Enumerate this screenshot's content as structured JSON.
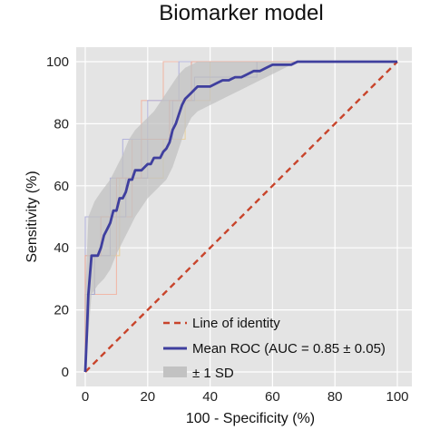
{
  "chart_data": {
    "type": "line",
    "title": "Biomarker model",
    "xlabel": "100 - Specificity (%)",
    "ylabel": "Sensitivity (%)",
    "xlim": [
      0,
      100
    ],
    "ylim": [
      0,
      100
    ],
    "xticks": [
      0,
      20,
      40,
      60,
      80,
      100
    ],
    "yticks": [
      0,
      20,
      40,
      60,
      80,
      100
    ],
    "grid": true,
    "legend_position": "bottom-right",
    "colors": {
      "background": "#e4e4e4",
      "grid": "#ffffff",
      "identity": "#c8442b",
      "mean_roc": "#3f3f9e",
      "sd_band": "#c2c2c2",
      "fold_curves": [
        "#f0b8a8",
        "#b4b4dc",
        "#e6d0a0",
        "#a8a8d0",
        "#e8a898"
      ]
    },
    "series": [
      {
        "name": "Line of identity",
        "style": "dashed",
        "points": [
          [
            0,
            0
          ],
          [
            100,
            100
          ]
        ]
      },
      {
        "name": "Mean ROC (AUC = 0.85 ± 0.05)",
        "style": "solid",
        "points": [
          [
            0,
            0
          ],
          [
            0.5,
            12
          ],
          [
            1,
            25
          ],
          [
            2,
            37.5
          ],
          [
            4,
            37.5
          ],
          [
            5,
            40
          ],
          [
            6,
            44
          ],
          [
            7,
            46
          ],
          [
            8,
            48
          ],
          [
            9,
            52
          ],
          [
            10,
            52
          ],
          [
            11,
            56
          ],
          [
            12,
            56
          ],
          [
            13,
            58
          ],
          [
            14,
            62
          ],
          [
            15,
            62
          ],
          [
            16,
            65
          ],
          [
            18,
            65
          ],
          [
            19,
            66
          ],
          [
            20,
            67
          ],
          [
            21,
            67
          ],
          [
            22,
            69
          ],
          [
            24,
            69
          ],
          [
            25,
            71
          ],
          [
            26,
            72
          ],
          [
            27,
            74
          ],
          [
            28,
            78
          ],
          [
            29,
            80
          ],
          [
            30,
            83
          ],
          [
            31,
            86
          ],
          [
            32,
            88
          ],
          [
            34,
            90
          ],
          [
            35,
            91
          ],
          [
            36,
            92
          ],
          [
            38,
            92
          ],
          [
            40,
            92
          ],
          [
            42,
            93
          ],
          [
            44,
            94
          ],
          [
            46,
            94
          ],
          [
            48,
            95
          ],
          [
            50,
            95
          ],
          [
            52,
            96
          ],
          [
            54,
            97
          ],
          [
            56,
            97
          ],
          [
            58,
            98
          ],
          [
            60,
            99
          ],
          [
            62,
            99
          ],
          [
            64,
            99
          ],
          [
            66,
            99
          ],
          [
            68,
            100
          ],
          [
            100,
            100
          ]
        ]
      },
      {
        "name": "± 1 SD",
        "style": "band",
        "upper": [
          [
            0,
            25
          ],
          [
            1,
            50
          ],
          [
            3,
            55
          ],
          [
            5,
            58
          ],
          [
            8,
            62
          ],
          [
            10,
            66
          ],
          [
            12,
            70
          ],
          [
            14,
            75
          ],
          [
            16,
            78
          ],
          [
            18,
            80
          ],
          [
            20,
            82
          ],
          [
            22,
            84
          ],
          [
            24,
            87
          ],
          [
            26,
            90
          ],
          [
            28,
            93
          ],
          [
            30,
            96
          ],
          [
            32,
            98
          ],
          [
            34,
            99
          ],
          [
            36,
            100
          ],
          [
            68,
            100
          ],
          [
            100,
            100
          ]
        ],
        "lower": [
          [
            0,
            0
          ],
          [
            2,
            25
          ],
          [
            4,
            28
          ],
          [
            6,
            30
          ],
          [
            8,
            33
          ],
          [
            10,
            38
          ],
          [
            12,
            42
          ],
          [
            14,
            46
          ],
          [
            16,
            50
          ],
          [
            18,
            53
          ],
          [
            20,
            56
          ],
          [
            22,
            58
          ],
          [
            24,
            60
          ],
          [
            26,
            62
          ],
          [
            28,
            66
          ],
          [
            30,
            72
          ],
          [
            32,
            78
          ],
          [
            34,
            82
          ],
          [
            36,
            84
          ],
          [
            40,
            86
          ],
          [
            44,
            88
          ],
          [
            48,
            90
          ],
          [
            52,
            92
          ],
          [
            56,
            94
          ],
          [
            60,
            96
          ],
          [
            64,
            98
          ],
          [
            68,
            100
          ],
          [
            100,
            100
          ]
        ]
      }
    ],
    "fold_curves": [
      [
        [
          0,
          0
        ],
        [
          0,
          25
        ],
        [
          10,
          25
        ],
        [
          10,
          50
        ],
        [
          15,
          50
        ],
        [
          15,
          75
        ],
        [
          18,
          75
        ],
        [
          18,
          87.5
        ],
        [
          25,
          87.5
        ],
        [
          25,
          100
        ],
        [
          100,
          100
        ]
      ],
      [
        [
          0,
          0
        ],
        [
          0,
          50
        ],
        [
          8,
          50
        ],
        [
          8,
          62.5
        ],
        [
          12,
          62.5
        ],
        [
          12,
          75
        ],
        [
          20,
          75
        ],
        [
          20,
          87.5
        ],
        [
          30,
          87.5
        ],
        [
          30,
          100
        ],
        [
          100,
          100
        ]
      ],
      [
        [
          0,
          0
        ],
        [
          0,
          25
        ],
        [
          3,
          25
        ],
        [
          3,
          37.5
        ],
        [
          11,
          37.5
        ],
        [
          11,
          62.5
        ],
        [
          25,
          62.5
        ],
        [
          25,
          75
        ],
        [
          32,
          75
        ],
        [
          32,
          87.5
        ],
        [
          40,
          87.5
        ],
        [
          40,
          100
        ],
        [
          100,
          100
        ]
      ],
      [
        [
          0,
          0
        ],
        [
          0,
          25
        ],
        [
          3,
          25
        ],
        [
          3,
          37.5
        ],
        [
          8,
          37.5
        ],
        [
          8,
          50
        ],
        [
          13,
          50
        ],
        [
          13,
          62.5
        ],
        [
          20,
          62.5
        ],
        [
          20,
          75
        ],
        [
          28,
          75
        ],
        [
          28,
          87.5
        ],
        [
          35,
          87.5
        ],
        [
          35,
          95
        ],
        [
          55,
          95
        ],
        [
          55,
          100
        ],
        [
          100,
          100
        ]
      ],
      [
        [
          0,
          0
        ],
        [
          0,
          37.5
        ],
        [
          5,
          37.5
        ],
        [
          5,
          50
        ],
        [
          10,
          50
        ],
        [
          10,
          62.5
        ],
        [
          18,
          62.5
        ],
        [
          18,
          75
        ],
        [
          27,
          75
        ],
        [
          27,
          87.5
        ],
        [
          34,
          87.5
        ],
        [
          34,
          100
        ],
        [
          100,
          100
        ]
      ]
    ]
  }
}
